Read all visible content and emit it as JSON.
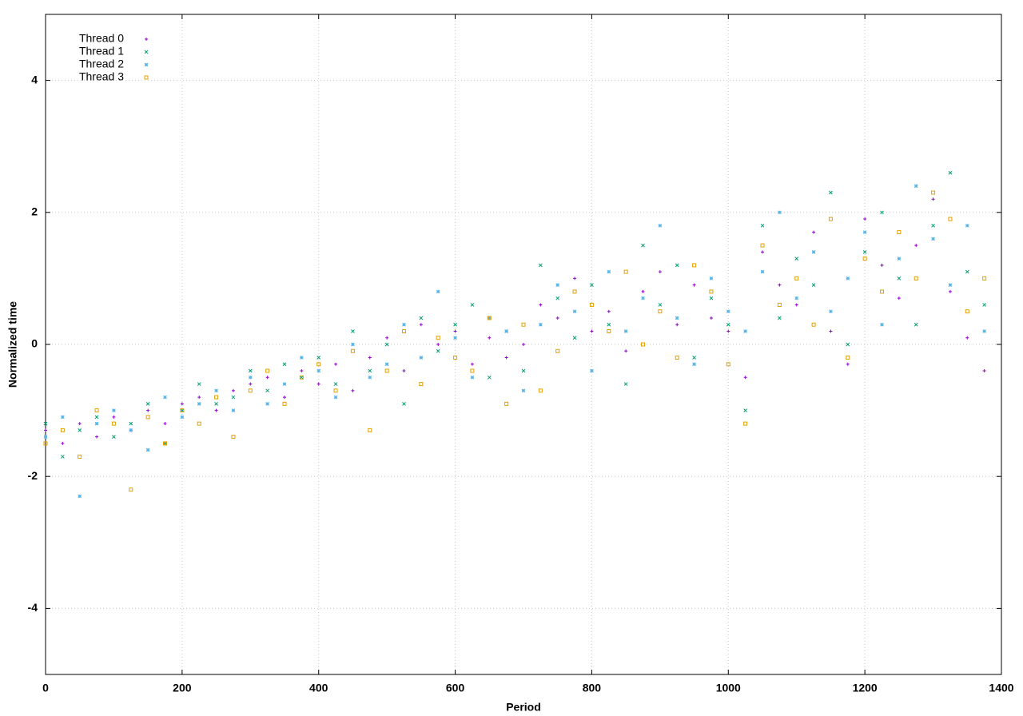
{
  "chart_data": {
    "type": "scatter",
    "xlabel": "Period",
    "ylabel": "Normalized time",
    "xlim": [
      0,
      1400
    ],
    "ylim": [
      -5,
      5
    ],
    "xticks": [
      0,
      200,
      400,
      600,
      800,
      1000,
      1200,
      1400
    ],
    "yticks": [
      -4,
      -2,
      0,
      2,
      4
    ],
    "grid": true,
    "legend": "top-left",
    "x": [
      0,
      25,
      50,
      75,
      100,
      125,
      150,
      175,
      200,
      225,
      250,
      275,
      300,
      325,
      350,
      375,
      400,
      425,
      450,
      475,
      500,
      525,
      550,
      575,
      600,
      625,
      650,
      675,
      700,
      725,
      750,
      775,
      800,
      825,
      850,
      875,
      900,
      925,
      950,
      975,
      1000,
      1025,
      1050,
      1075,
      1100,
      1125,
      1150,
      1175,
      1200,
      1225,
      1250,
      1275,
      1300,
      1325,
      1350,
      1375
    ],
    "series": [
      {
        "name": "Thread 0",
        "color": "#9400d3",
        "marker": "plus",
        "values": [
          -1.3,
          -1.5,
          -1.2,
          -1.4,
          -1.1,
          -1.3,
          -1.0,
          -1.2,
          -0.9,
          -0.8,
          -1.0,
          -0.7,
          -0.6,
          -0.5,
          -0.8,
          -0.4,
          -0.6,
          -0.3,
          -0.7,
          -0.2,
          0.1,
          -0.4,
          0.3,
          0.0,
          0.2,
          -0.3,
          0.1,
          -0.2,
          0.0,
          0.6,
          0.4,
          1.0,
          0.2,
          0.5,
          -0.1,
          0.8,
          1.1,
          0.3,
          0.9,
          0.4,
          0.2,
          -0.5,
          1.4,
          0.9,
          0.6,
          1.7,
          0.2,
          -0.3,
          1.9,
          1.2,
          0.7,
          1.5,
          2.2,
          0.8,
          0.1,
          -0.4
        ]
      },
      {
        "name": "Thread 1",
        "color": "#009e73",
        "marker": "cross",
        "values": [
          -1.2,
          -1.7,
          -1.3,
          -1.1,
          -1.4,
          -1.2,
          -0.9,
          -1.5,
          -1.0,
          -0.6,
          -0.9,
          -0.8,
          -0.4,
          -0.7,
          -0.3,
          -0.5,
          -0.2,
          -0.6,
          0.2,
          -0.4,
          0.0,
          -0.9,
          0.4,
          -0.1,
          0.3,
          0.6,
          -0.5,
          0.2,
          -0.4,
          1.2,
          0.7,
          0.1,
          0.9,
          0.3,
          -0.6,
          1.5,
          0.6,
          1.2,
          -0.2,
          0.7,
          0.3,
          -1.0,
          1.8,
          0.4,
          1.3,
          0.9,
          2.3,
          0.0,
          1.4,
          2.0,
          1.0,
          0.3,
          1.8,
          2.6,
          1.1,
          0.6
        ]
      },
      {
        "name": "Thread 2",
        "color": "#56b4e9",
        "marker": "star",
        "values": [
          -1.4,
          -1.1,
          -2.3,
          -1.2,
          -1.0,
          -1.3,
          -1.6,
          -0.8,
          -1.1,
          -0.9,
          -0.7,
          -1.0,
          -0.5,
          -0.9,
          -0.6,
          -0.2,
          -0.4,
          -0.8,
          0.0,
          -0.5,
          -0.3,
          0.3,
          -0.2,
          0.8,
          0.1,
          -0.5,
          0.4,
          0.2,
          -0.7,
          0.3,
          0.9,
          0.5,
          -0.4,
          1.1,
          0.2,
          0.7,
          1.8,
          0.4,
          -0.3,
          1.0,
          0.5,
          0.2,
          1.1,
          2.0,
          0.7,
          1.4,
          0.5,
          1.0,
          1.7,
          0.3,
          1.3,
          2.4,
          1.6,
          0.9,
          1.8,
          0.2
        ]
      },
      {
        "name": "Thread 3",
        "color": "#e69f00",
        "marker": "square",
        "values": [
          -1.5,
          -1.3,
          -1.7,
          -1.0,
          -1.2,
          -2.2,
          -1.1,
          -1.5,
          -1.0,
          -1.2,
          -0.8,
          -1.4,
          -0.7,
          -0.4,
          -0.9,
          -0.5,
          -0.3,
          -0.7,
          -0.1,
          -1.3,
          -0.4,
          0.2,
          -0.6,
          0.1,
          -0.2,
          -0.4,
          0.4,
          -0.9,
          0.3,
          -0.7,
          -0.1,
          0.8,
          0.6,
          0.2,
          1.1,
          0.0,
          0.5,
          -0.2,
          1.2,
          0.8,
          -0.3,
          -1.2,
          1.5,
          0.6,
          1.0,
          0.3,
          1.9,
          -0.2,
          1.3,
          0.8,
          1.7,
          1.0,
          2.3,
          1.9,
          0.5,
          1.0
        ]
      }
    ]
  }
}
